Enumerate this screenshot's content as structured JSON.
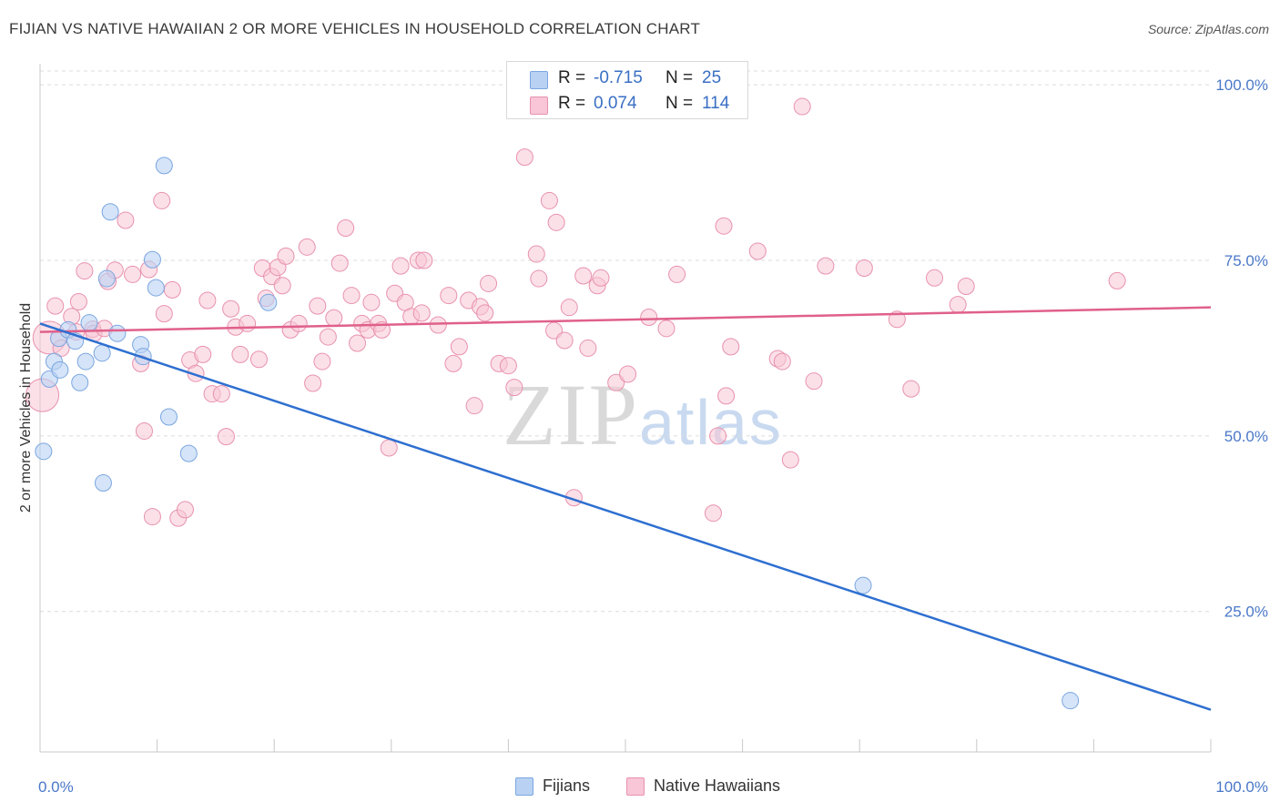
{
  "header": {
    "title": "FIJIAN VS NATIVE HAWAIIAN 2 OR MORE VEHICLES IN HOUSEHOLD CORRELATION CHART",
    "source": "Source: ZipAtlas.com"
  },
  "watermark": {
    "zip": "ZIP",
    "atlas": "atlas"
  },
  "legend": {
    "rows": [
      {
        "r_label": "R =",
        "r_value": "-0.715",
        "n_label": "N =",
        "n_value": "25",
        "fill": "#b9d2f3",
        "stroke": "#7aa6e0"
      },
      {
        "r_label": "R =",
        "r_value": "0.074",
        "n_label": "N =",
        "n_value": "114",
        "fill": "#f8c6d6",
        "stroke": "#e891ae"
      }
    ]
  },
  "bottom_legend": {
    "fijians": "Fijians",
    "hawaiians": "Native Hawaiians"
  },
  "chart_data": {
    "type": "scatter",
    "title": "FIJIAN VS NATIVE HAWAIIAN 2 OR MORE VEHICLES IN HOUSEHOLD CORRELATION CHART",
    "xlabel": "",
    "ylabel": "2 or more Vehicles in Household",
    "xlim": [
      0,
      100
    ],
    "ylim": [
      5,
      103
    ],
    "x_tick_labels": {
      "left": "0.0%",
      "right": "100.0%"
    },
    "y_ticks": [
      100,
      75,
      50,
      25
    ],
    "y_tick_labels": [
      "100.0%",
      "75.0%",
      "50.0%",
      "25.0%"
    ],
    "colors": {
      "fijians_fill": "#b9d2f3",
      "fijians_stroke": "#7aa6e0",
      "fijians_line": "#2e6fd0",
      "hawaiians_fill": "#f8c6d6",
      "hawaiians_stroke": "#e891ae",
      "hawaiians_line": "#e0608b"
    },
    "series": [
      {
        "name": "Fijians",
        "trend": {
          "x": [
            0,
            100
          ],
          "y": [
            66.0,
            11.0
          ]
        },
        "points": [
          [
            0.3,
            47.8
          ],
          [
            0.8,
            58.1
          ],
          [
            1.2,
            60.6
          ],
          [
            1.7,
            59.4
          ],
          [
            1.6,
            63.9
          ],
          [
            2.4,
            65.1
          ],
          [
            3.0,
            63.5
          ],
          [
            3.4,
            57.6
          ],
          [
            3.9,
            60.6
          ],
          [
            4.2,
            66.1
          ],
          [
            5.3,
            61.8
          ],
          [
            5.4,
            43.3
          ],
          [
            5.7,
            72.4
          ],
          [
            6.0,
            81.9
          ],
          [
            6.6,
            64.6
          ],
          [
            8.6,
            63.0
          ],
          [
            8.8,
            61.3
          ],
          [
            9.6,
            75.1
          ],
          [
            9.9,
            71.1
          ],
          [
            10.6,
            88.5
          ],
          [
            11.0,
            52.7
          ],
          [
            12.7,
            47.5
          ],
          [
            19.5,
            69.0
          ],
          [
            70.3,
            28.7
          ],
          [
            88.0,
            12.3
          ]
        ]
      },
      {
        "name": "Native Hawaiians",
        "trend": {
          "x": [
            0,
            100
          ],
          "y": [
            64.8,
            68.3
          ]
        },
        "points": [
          [
            0.2,
            55.8
          ],
          [
            0.8,
            64.0
          ],
          [
            1.3,
            68.5
          ],
          [
            1.8,
            62.5
          ],
          [
            2.7,
            67.0
          ],
          [
            3.1,
            64.8
          ],
          [
            3.3,
            69.1
          ],
          [
            3.8,
            73.5
          ],
          [
            4.5,
            65.2
          ],
          [
            4.6,
            64.6
          ],
          [
            5.5,
            65.3
          ],
          [
            5.8,
            72.0
          ],
          [
            6.4,
            73.6
          ],
          [
            7.3,
            80.7
          ],
          [
            7.9,
            73.0
          ],
          [
            8.6,
            60.3
          ],
          [
            8.9,
            50.7
          ],
          [
            9.3,
            73.7
          ],
          [
            9.6,
            38.5
          ],
          [
            10.4,
            83.5
          ],
          [
            10.6,
            67.4
          ],
          [
            11.3,
            70.8
          ],
          [
            11.8,
            38.3
          ],
          [
            12.4,
            39.5
          ],
          [
            12.8,
            60.8
          ],
          [
            13.3,
            58.9
          ],
          [
            13.9,
            61.6
          ],
          [
            14.3,
            69.3
          ],
          [
            14.7,
            56.0
          ],
          [
            15.5,
            56.0
          ],
          [
            15.9,
            49.9
          ],
          [
            16.3,
            68.1
          ],
          [
            16.7,
            65.5
          ],
          [
            17.1,
            61.6
          ],
          [
            17.7,
            66.0
          ],
          [
            18.7,
            60.9
          ],
          [
            19.0,
            73.9
          ],
          [
            19.3,
            69.6
          ],
          [
            19.8,
            72.7
          ],
          [
            20.3,
            74.0
          ],
          [
            20.7,
            71.4
          ],
          [
            21.0,
            75.6
          ],
          [
            21.4,
            65.1
          ],
          [
            22.1,
            66.0
          ],
          [
            22.8,
            76.9
          ],
          [
            23.3,
            57.5
          ],
          [
            23.7,
            68.5
          ],
          [
            24.1,
            60.6
          ],
          [
            24.6,
            64.1
          ],
          [
            25.1,
            66.8
          ],
          [
            25.6,
            74.6
          ],
          [
            26.1,
            79.6
          ],
          [
            26.6,
            70.0
          ],
          [
            27.1,
            63.2
          ],
          [
            27.5,
            66.0
          ],
          [
            28.0,
            65.1
          ],
          [
            28.3,
            69.0
          ],
          [
            28.9,
            66.0
          ],
          [
            29.2,
            65.1
          ],
          [
            29.8,
            48.3
          ],
          [
            30.3,
            70.3
          ],
          [
            30.8,
            74.2
          ],
          [
            31.2,
            69.0
          ],
          [
            31.7,
            67.0
          ],
          [
            32.3,
            75.0
          ],
          [
            32.6,
            67.5
          ],
          [
            32.8,
            75.0
          ],
          [
            34.0,
            65.8
          ],
          [
            34.9,
            70.0
          ],
          [
            35.3,
            60.3
          ],
          [
            35.8,
            62.7
          ],
          [
            36.6,
            69.3
          ],
          [
            37.1,
            54.3
          ],
          [
            37.6,
            68.4
          ],
          [
            38.0,
            67.5
          ],
          [
            38.3,
            71.7
          ],
          [
            39.2,
            60.3
          ],
          [
            40.0,
            60.0
          ],
          [
            40.5,
            56.9
          ],
          [
            41.4,
            89.7
          ],
          [
            42.4,
            75.9
          ],
          [
            42.6,
            72.4
          ],
          [
            43.5,
            83.5
          ],
          [
            43.9,
            65.0
          ],
          [
            44.1,
            80.4
          ],
          [
            44.8,
            63.6
          ],
          [
            45.2,
            68.3
          ],
          [
            45.6,
            41.2
          ],
          [
            46.4,
            72.8
          ],
          [
            46.8,
            62.5
          ],
          [
            47.6,
            71.4
          ],
          [
            47.9,
            72.5
          ],
          [
            49.2,
            57.6
          ],
          [
            50.2,
            58.8
          ],
          [
            52.0,
            66.9
          ],
          [
            53.5,
            65.3
          ],
          [
            54.4,
            73.0
          ],
          [
            57.5,
            39.0
          ],
          [
            57.9,
            50.0
          ],
          [
            58.4,
            79.9
          ],
          [
            58.6,
            55.7
          ],
          [
            59.0,
            62.7
          ],
          [
            61.3,
            76.3
          ],
          [
            63.0,
            61.0
          ],
          [
            63.4,
            60.6
          ],
          [
            64.1,
            46.6
          ],
          [
            65.1,
            96.9
          ],
          [
            66.1,
            57.8
          ],
          [
            67.1,
            74.2
          ],
          [
            70.4,
            73.9
          ],
          [
            73.2,
            66.6
          ],
          [
            74.4,
            56.7
          ],
          [
            76.4,
            72.5
          ],
          [
            78.4,
            68.7
          ],
          [
            79.1,
            71.3
          ],
          [
            92.0,
            72.1
          ]
        ]
      }
    ]
  }
}
